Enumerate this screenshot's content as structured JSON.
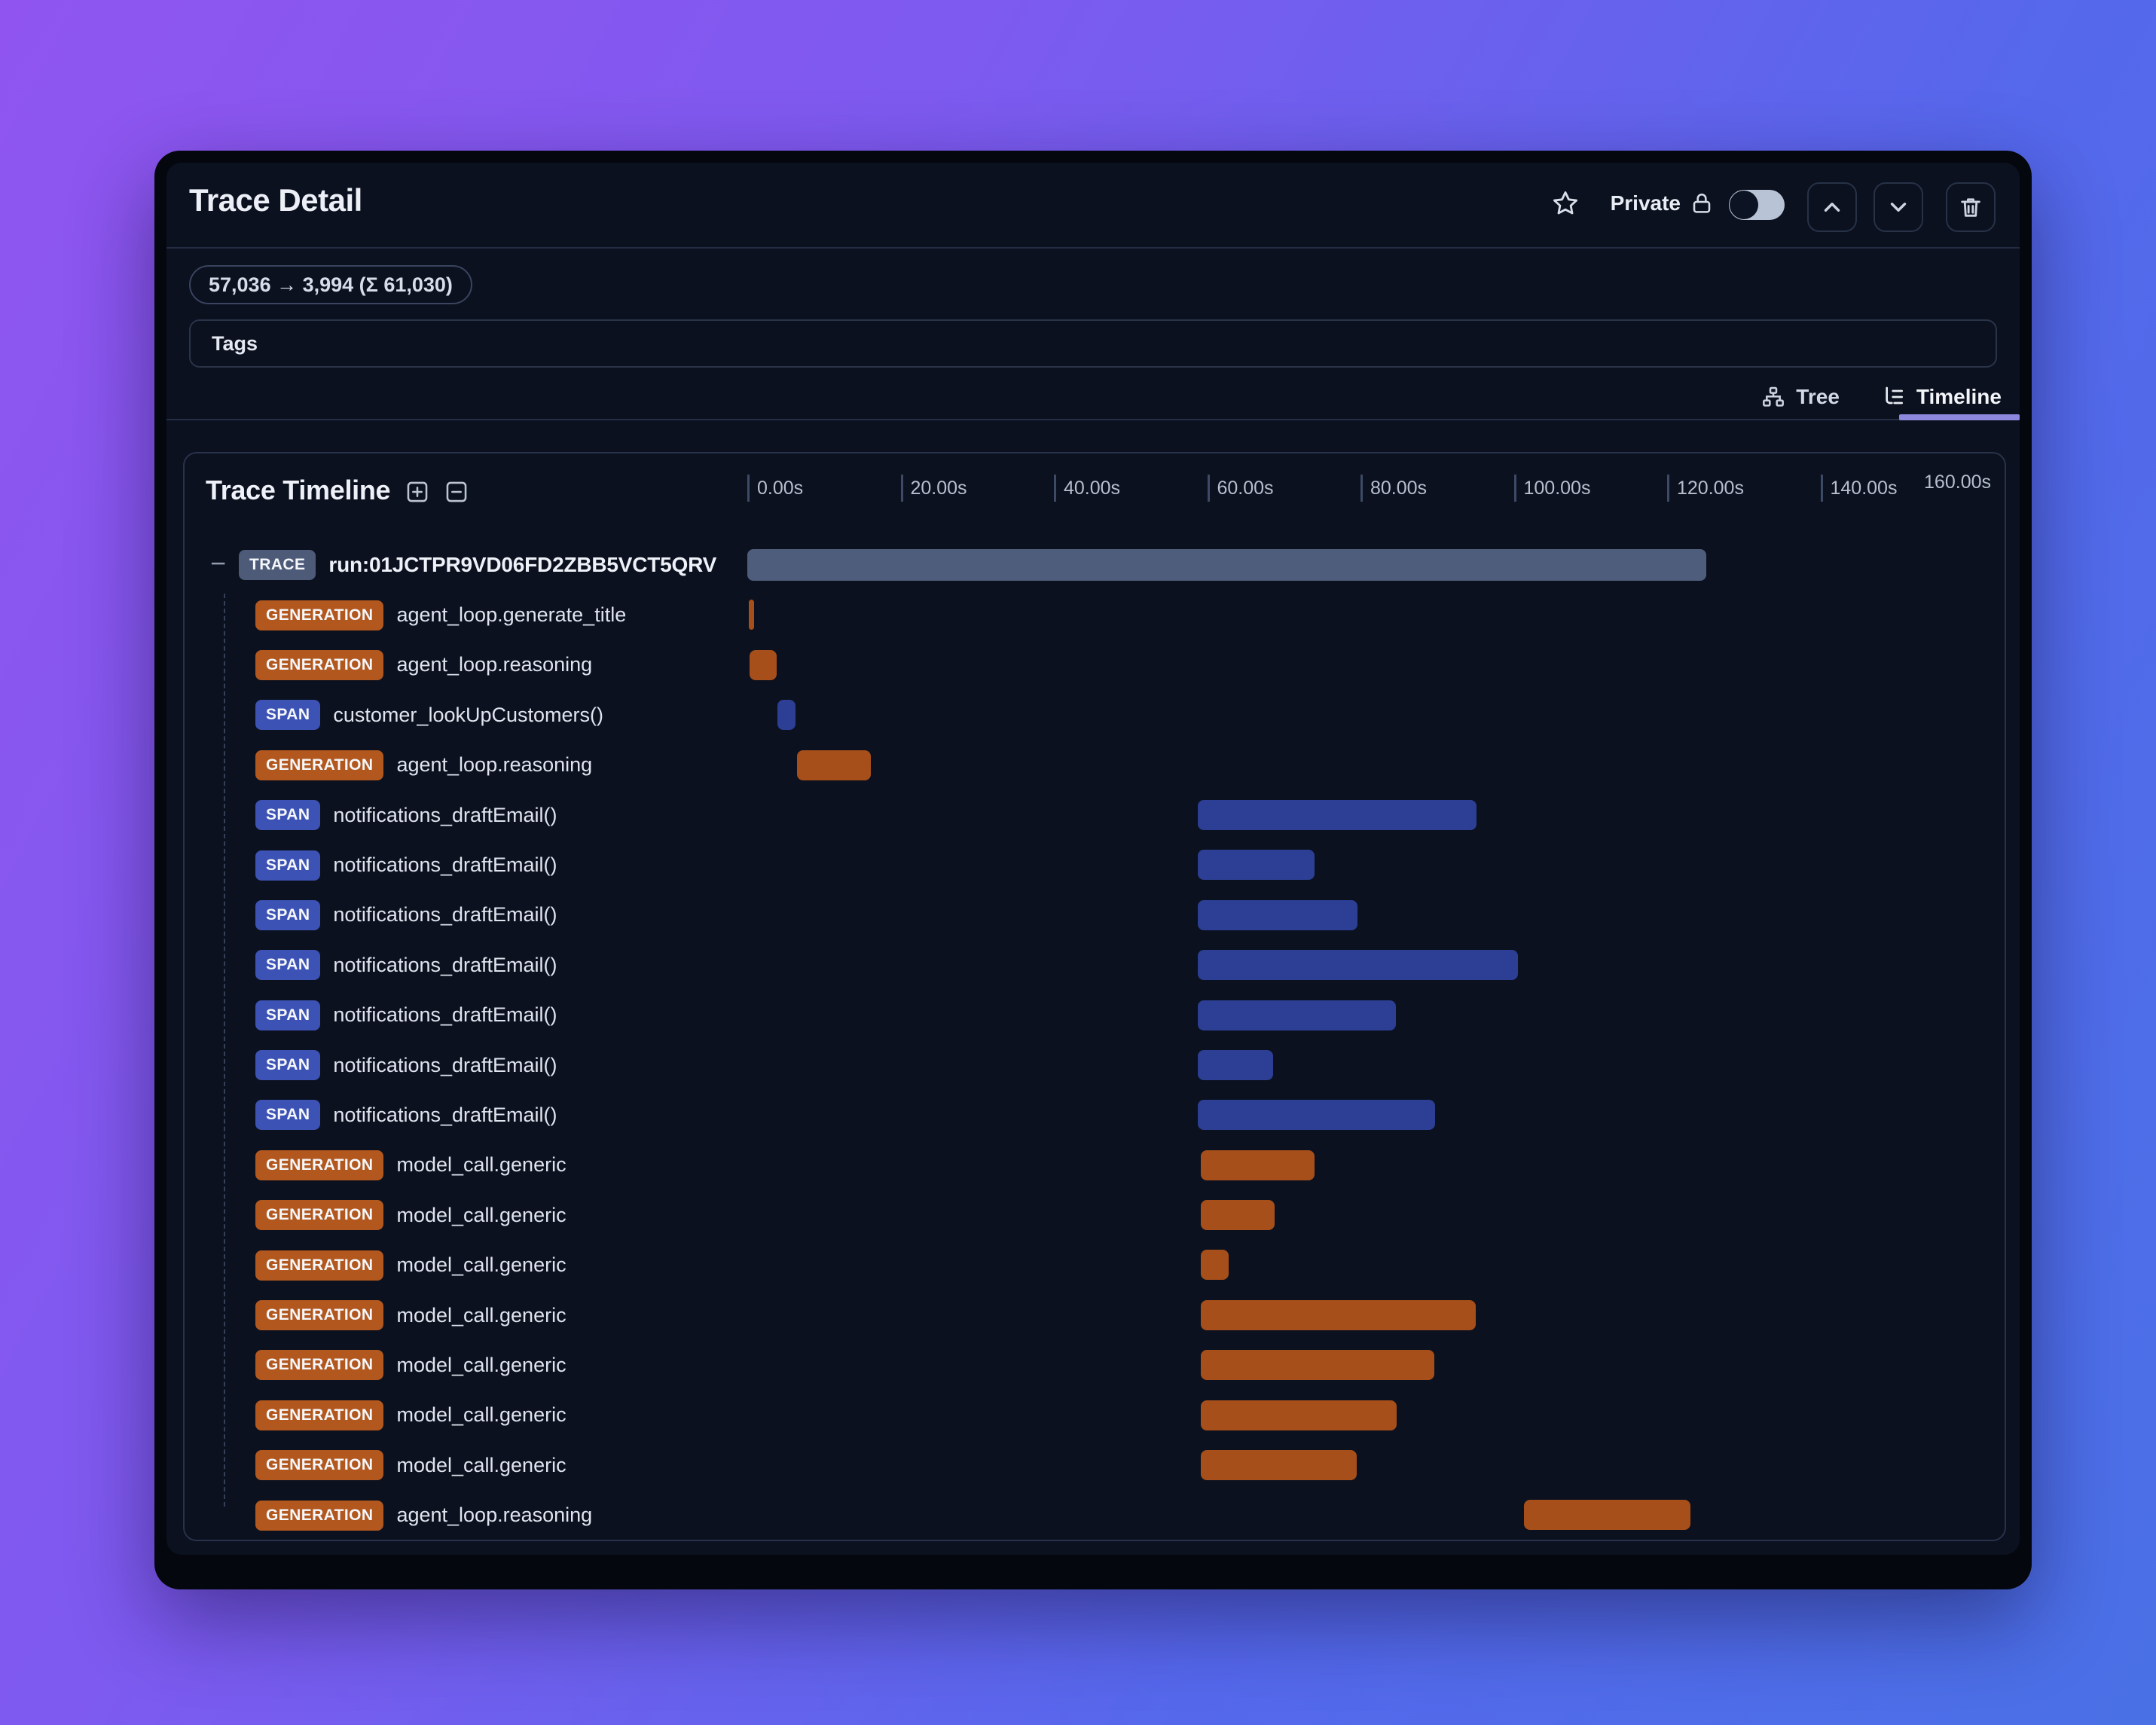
{
  "header": {
    "title": "Trace Detail",
    "privacy_label": "Private",
    "controls": [
      {
        "name": "star-icon"
      },
      {
        "name": "lock-icon"
      },
      {
        "name": "privacy-toggle",
        "state": "off"
      },
      {
        "name": "chevron-up-button"
      },
      {
        "name": "chevron-down-button"
      },
      {
        "name": "trash-button"
      }
    ]
  },
  "usage_badge": "57,036 → 3,994 (Σ 61,030)",
  "tags": {
    "label": "Tags"
  },
  "tabs": [
    {
      "label": "Tree",
      "icon": "sitemap-icon",
      "active": false
    },
    {
      "label": "Timeline",
      "icon": "list-tree-icon",
      "active": true
    }
  ],
  "timeline": {
    "title": "Trace Timeline",
    "expand_all_icon": "plus-square-icon",
    "collapse_all_icon": "minus-square-icon",
    "axis": {
      "ticks": [
        "0.00s",
        "20.00s",
        "40.00s",
        "60.00s",
        "80.00s",
        "100.00s",
        "120.00s",
        "140.00s",
        "160.00s"
      ],
      "max_s": 160
    },
    "colors": {
      "TRACE": {
        "badge": "#4d5b79",
        "bar": "#4e5d7b"
      },
      "GENERATION": {
        "badge": "#b2571d",
        "bar": "#a64f1a"
      },
      "SPAN": {
        "badge": "#3c52b4",
        "bar": "#2c3f94"
      }
    },
    "rows": [
      {
        "type": "TRACE",
        "name": "run:01JCTPR9VD06FD2ZBB5VCT5QRV",
        "start_s": 0,
        "end_s": 125.1,
        "root": true
      },
      {
        "type": "GENERATION",
        "name": "agent_loop.generate_title",
        "start_s": 0.2,
        "end_s": 0.9
      },
      {
        "type": "GENERATION",
        "name": "agent_loop.reasoning",
        "start_s": 0.3,
        "end_s": 3.8
      },
      {
        "type": "SPAN",
        "name": "customer_lookUpCustomers()",
        "start_s": 3.9,
        "end_s": 6.3
      },
      {
        "type": "GENERATION",
        "name": "agent_loop.reasoning",
        "start_s": 6.5,
        "end_s": 16.1
      },
      {
        "type": "SPAN",
        "name": "notifications_draftEmail()",
        "start_s": 58.8,
        "end_s": 95.1
      },
      {
        "type": "SPAN",
        "name": "notifications_draftEmail()",
        "start_s": 58.8,
        "end_s": 74.0
      },
      {
        "type": "SPAN",
        "name": "notifications_draftEmail()",
        "start_s": 58.8,
        "end_s": 79.6
      },
      {
        "type": "SPAN",
        "name": "notifications_draftEmail()",
        "start_s": 58.8,
        "end_s": 100.5
      },
      {
        "type": "SPAN",
        "name": "notifications_draftEmail()",
        "start_s": 58.8,
        "end_s": 84.6
      },
      {
        "type": "SPAN",
        "name": "notifications_draftEmail()",
        "start_s": 58.8,
        "end_s": 68.6
      },
      {
        "type": "SPAN",
        "name": "notifications_draftEmail()",
        "start_s": 58.8,
        "end_s": 89.7
      },
      {
        "type": "GENERATION",
        "name": "model_call.generic",
        "start_s": 59.2,
        "end_s": 74.0
      },
      {
        "type": "GENERATION",
        "name": "model_call.generic",
        "start_s": 59.2,
        "end_s": 68.8
      },
      {
        "type": "GENERATION",
        "name": "model_call.generic",
        "start_s": 59.2,
        "end_s": 62.8
      },
      {
        "type": "GENERATION",
        "name": "model_call.generic",
        "start_s": 59.2,
        "end_s": 95.0
      },
      {
        "type": "GENERATION",
        "name": "model_call.generic",
        "start_s": 59.2,
        "end_s": 89.6
      },
      {
        "type": "GENERATION",
        "name": "model_call.generic",
        "start_s": 59.2,
        "end_s": 84.7
      },
      {
        "type": "GENERATION",
        "name": "model_call.generic",
        "start_s": 59.2,
        "end_s": 79.5
      },
      {
        "type": "GENERATION",
        "name": "agent_loop.reasoning",
        "start_s": 101.3,
        "end_s": 123.0
      }
    ]
  }
}
